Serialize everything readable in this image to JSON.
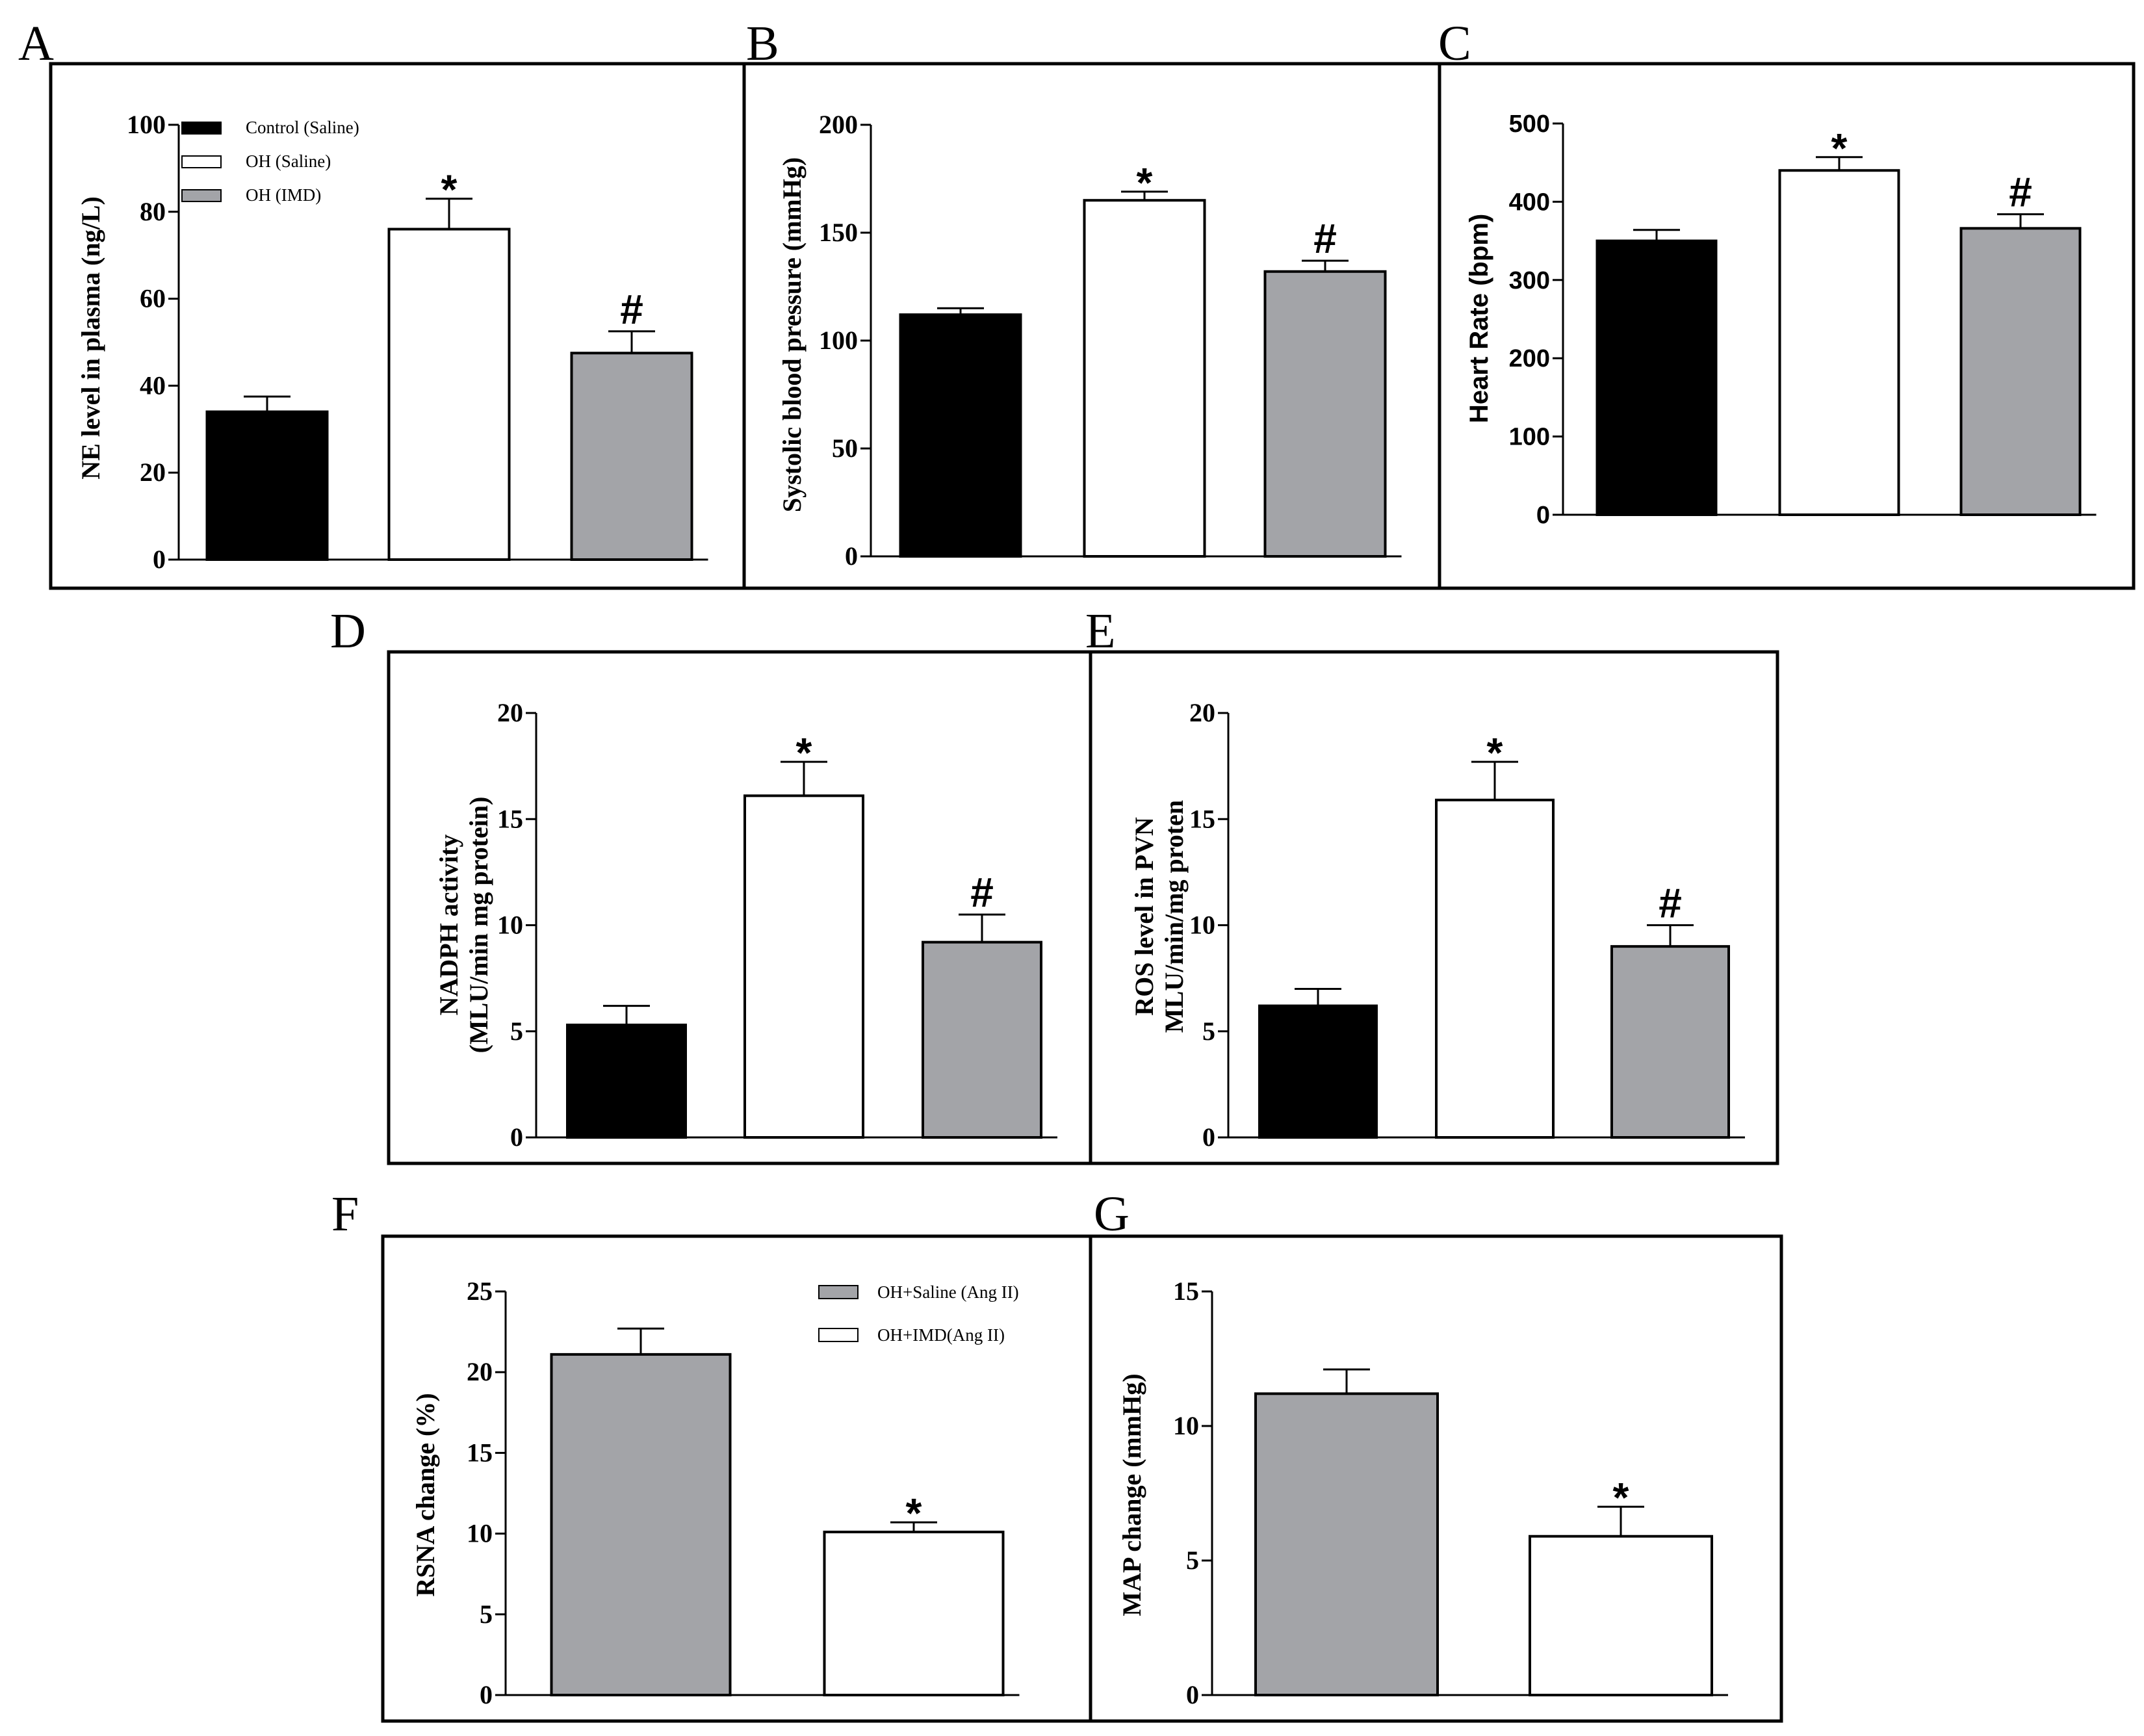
{
  "colors": {
    "control": "#000000",
    "oh_saline": "#ffffff",
    "oh_imd": "#a3a4a8",
    "outline": "#000000"
  },
  "legends": {
    "A": [
      {
        "label": "Control (Saline)",
        "color": "#000000"
      },
      {
        "label": "OH (Saline)",
        "color": "#ffffff"
      },
      {
        "label": "OH (IMD)",
        "color": "#a3a4a8"
      }
    ],
    "F": [
      {
        "label": "OH+Saline (Ang II)",
        "color": "#a3a4a8"
      },
      {
        "label": "OH+IMD(Ang II)",
        "color": "#ffffff"
      }
    ]
  },
  "chart_data": [
    {
      "panel": "A",
      "type": "bar",
      "ylabel": "NE level in plasma (ng/L)",
      "ylim": [
        0,
        100
      ],
      "yticks": [
        0,
        20,
        40,
        60,
        80,
        100
      ],
      "values": [
        34,
        76,
        47.5
      ],
      "errors": [
        3.5,
        7,
        5
      ],
      "colors": [
        "#000000",
        "#ffffff",
        "#a3a4a8"
      ],
      "annotations": [
        "",
        "*",
        "#"
      ]
    },
    {
      "panel": "B",
      "type": "bar",
      "ylabel": "Systolic blood pressure (mmHg)",
      "ylim": [
        0,
        200
      ],
      "yticks": [
        0,
        50,
        100,
        150,
        200
      ],
      "values": [
        112,
        165,
        132
      ],
      "errors": [
        3,
        4,
        5
      ],
      "colors": [
        "#000000",
        "#ffffff",
        "#a3a4a8"
      ],
      "annotations": [
        "",
        "*",
        "#"
      ]
    },
    {
      "panel": "C",
      "type": "bar",
      "ylabel": "Heart Rate (bpm)",
      "ylim": [
        0,
        500
      ],
      "yticks": [
        0,
        100,
        200,
        300,
        400,
        500
      ],
      "values": [
        350,
        440,
        366
      ],
      "errors": [
        14,
        17,
        18
      ],
      "colors": [
        "#000000",
        "#ffffff",
        "#a3a4a8"
      ],
      "annotations": [
        "",
        "*",
        "#"
      ]
    },
    {
      "panel": "D",
      "type": "bar",
      "ylabel": [
        "NADPH activity",
        "(MLU/min mg protein)"
      ],
      "ylim": [
        0,
        20
      ],
      "yticks": [
        0,
        5,
        10,
        15,
        20
      ],
      "values": [
        5.3,
        16.1,
        9.2
      ],
      "errors": [
        0.9,
        1.6,
        1.3
      ],
      "colors": [
        "#000000",
        "#ffffff",
        "#a3a4a8"
      ],
      "annotations": [
        "",
        "*",
        "#"
      ]
    },
    {
      "panel": "E",
      "type": "bar",
      "ylabel": [
        "ROS level in PVN",
        "MLU/min/mg proten"
      ],
      "ylim": [
        0,
        20
      ],
      "yticks": [
        0,
        5,
        10,
        15,
        20
      ],
      "values": [
        6.2,
        15.9,
        9.0
      ],
      "errors": [
        0.8,
        1.8,
        1.0
      ],
      "colors": [
        "#000000",
        "#ffffff",
        "#a3a4a8"
      ],
      "annotations": [
        "",
        "*",
        "#"
      ]
    },
    {
      "panel": "F",
      "type": "bar",
      "ylabel": "RSNA change (%)",
      "ylim": [
        0,
        25
      ],
      "yticks": [
        0,
        5,
        10,
        15,
        20,
        25
      ],
      "values": [
        21.1,
        10.1
      ],
      "errors": [
        1.6,
        0.6
      ],
      "colors": [
        "#a3a4a8",
        "#ffffff"
      ],
      "annotations": [
        "",
        "*"
      ]
    },
    {
      "panel": "G",
      "type": "bar",
      "ylabel": "MAP change (mmHg)",
      "ylim": [
        0,
        15
      ],
      "yticks": [
        0,
        5,
        10,
        15
      ],
      "values": [
        11.2,
        5.9
      ],
      "errors": [
        0.9,
        1.1
      ],
      "colors": [
        "#a3a4a8",
        "#ffffff"
      ],
      "annotations": [
        "",
        "*"
      ]
    }
  ]
}
